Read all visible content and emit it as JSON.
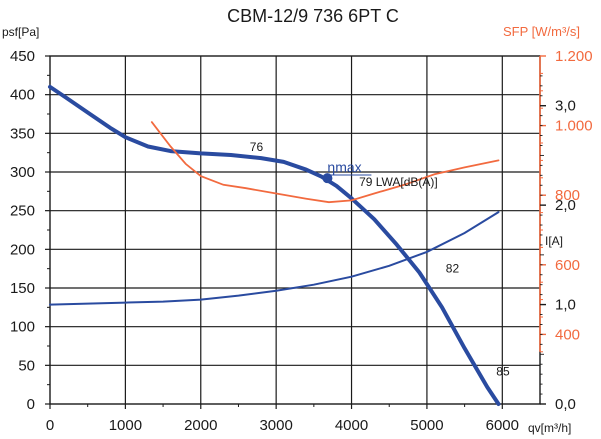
{
  "chart_data": {
    "type": "line",
    "title": "CBM-12/9 736 6PT C",
    "xlabel": "qv[m³/h]",
    "ylabel": "psf[Pa]",
    "ylabel_right_top": "SFP [W/m³/s]",
    "ylabel_right_bottom": "I[A]",
    "xlim": [
      0,
      6500
    ],
    "ylim": [
      0,
      450
    ],
    "sfp_lim": [
      200,
      1200
    ],
    "current_lim": [
      0,
      3.5
    ],
    "grid": true,
    "x_ticks": [
      "0",
      "1000",
      "2000",
      "3000",
      "4000",
      "5000",
      "6000"
    ],
    "y_ticks": [
      "0",
      "50",
      "100",
      "150",
      "200",
      "250",
      "300",
      "350",
      "400",
      "450"
    ],
    "sfp_ticks": [
      "400",
      "600",
      "800",
      "1.000",
      "1.200"
    ],
    "current_ticks": [
      "0,0",
      "1,0",
      "2,0",
      "3,0"
    ],
    "colors": {
      "pressure": "#2a4ba0",
      "current": "#2a4ba0",
      "sfp": "#f26a3f",
      "grid": "#1a1a1a"
    },
    "series": [
      {
        "axis": "pressure",
        "x": [
          0,
          200,
          500,
          800,
          1000,
          1300,
          1600,
          2000,
          2400,
          2800,
          3100,
          3400,
          3600,
          3800,
          4000,
          4300,
          4600,
          4900,
          5200,
          5500,
          5800,
          5950
        ],
        "y": [
          410,
          397,
          377,
          357,
          345,
          333,
          327,
          324,
          322,
          318,
          313,
          303,
          294,
          282,
          266,
          239,
          206,
          170,
          125,
          72,
          22,
          0
        ]
      },
      {
        "axis": "current",
        "x": [
          0,
          500,
          1000,
          1500,
          2000,
          2500,
          3000,
          3500,
          4000,
          4500,
          5000,
          5500,
          5950
        ],
        "y": [
          1.0,
          1.01,
          1.02,
          1.03,
          1.05,
          1.09,
          1.14,
          1.2,
          1.28,
          1.39,
          1.53,
          1.72,
          1.93
        ]
      },
      {
        "axis": "sfp",
        "x": [
          1350,
          1600,
          1800,
          2000,
          2300,
          2600,
          3000,
          3400,
          3700,
          4000,
          4300,
          4700,
          5100,
          5500,
          5950
        ],
        "y": [
          1010,
          940,
          890,
          855,
          830,
          820,
          805,
          790,
          780,
          785,
          805,
          830,
          860,
          880,
          900
        ]
      }
    ],
    "annotations": [
      {
        "text": "76",
        "x": 2650,
        "y": 327
      },
      {
        "text": "ηmax",
        "x": 3680,
        "y": 300
      },
      {
        "text": "79 LWA[dB(A)]",
        "x": 4100,
        "y": 282
      },
      {
        "text": "82",
        "x": 5250,
        "y": 170
      },
      {
        "text": "85",
        "x": 5920,
        "y": 37
      }
    ],
    "marker": {
      "label": "ηmax",
      "x": 3680,
      "y": 292
    }
  }
}
